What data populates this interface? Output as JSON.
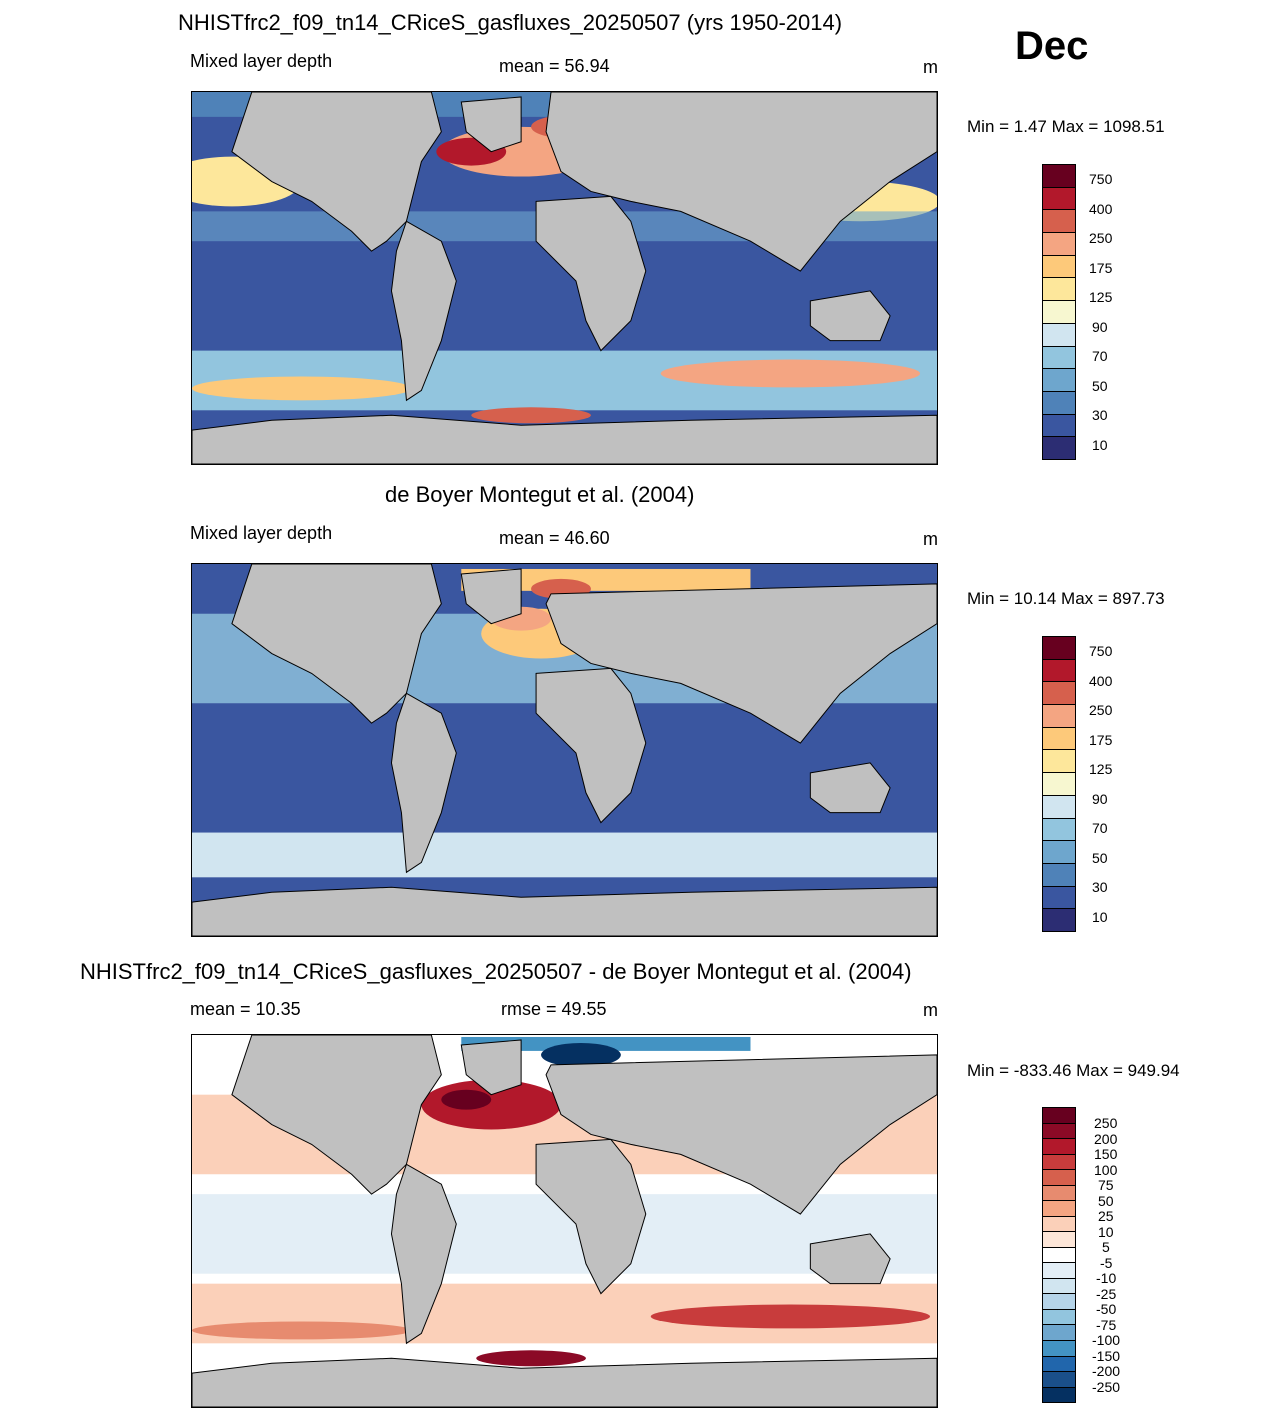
{
  "month": "Dec",
  "panels": [
    {
      "title": "NHISTfrc2_f09_tn14_CRiceS_gasfluxes_20250507 (yrs 1950-2014)",
      "left_label": "Mixed layer depth",
      "center_label": "mean =  56.94",
      "units": "m",
      "minmax": "Min =    1.47 Max = 1098.51",
      "colorbar_labels": [
        "750",
        "400",
        "250",
        "175",
        "125",
        "90",
        "70",
        "50",
        "30",
        "10"
      ]
    },
    {
      "title": "de Boyer Montegut et al. (2004)",
      "left_label": "Mixed layer depth",
      "center_label": "mean =  46.60",
      "units": "m",
      "minmax": "Min =  10.14 Max = 897.73",
      "colorbar_labels": [
        "750",
        "400",
        "250",
        "175",
        "125",
        "90",
        "70",
        "50",
        "30",
        "10"
      ]
    },
    {
      "title": "NHISTfrc2_f09_tn14_CRiceS_gasfluxes_20250507 - de Boyer Montegut et al. (2004)",
      "left_label": "mean =  10.35",
      "center_label": "rmse =  49.55",
      "units": "m",
      "minmax": "Min = -833.46 Max = 949.94",
      "colorbar_labels": [
        "250",
        "200",
        "150",
        "100",
        "75",
        "50",
        "25",
        "10",
        "5",
        "-5",
        "-10",
        "-25",
        "-50",
        "-75",
        "-100",
        "-150",
        "-200",
        "-250"
      ]
    }
  ],
  "colors": {
    "land": "#c0c0c0",
    "seq_scale": [
      "#67001f",
      "#b2182b",
      "#d6604d",
      "#f4a582",
      "#fdc97a",
      "#fde79b",
      "#f7f7d0",
      "#d1e5f0",
      "#92c5de",
      "#6ea6cd",
      "#4f82b8",
      "#3a56a0",
      "#2c2d73"
    ],
    "div_scale": [
      "#67001f",
      "#8b0a26",
      "#b2182b",
      "#c83c3c",
      "#d6604d",
      "#e78b6f",
      "#f4a582",
      "#fbd0b9",
      "#fde6d8",
      "#ffffff",
      "#e3eef6",
      "#d1e5f0",
      "#b5d4e9",
      "#92c5de",
      "#6ea6cd",
      "#4393c3",
      "#2166ac",
      "#1a4f8a",
      "#053061"
    ]
  }
}
